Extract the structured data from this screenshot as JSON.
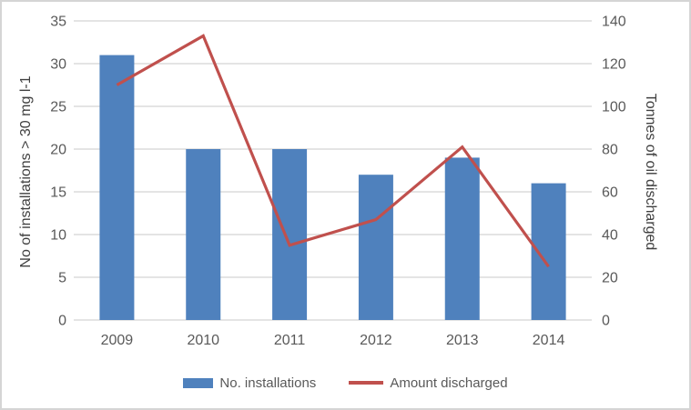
{
  "chart_data": {
    "type": "combo-bar-line",
    "categories": [
      "2009",
      "2010",
      "2011",
      "2012",
      "2013",
      "2014"
    ],
    "series": [
      {
        "name": "No. installations",
        "type": "bar",
        "axis": "left",
        "color": "#4f81bd",
        "values": [
          31,
          20,
          20,
          17,
          19,
          16
        ]
      },
      {
        "name": "Amount discharged",
        "type": "line",
        "axis": "right",
        "color": "#c0504d",
        "values": [
          110,
          133,
          35,
          47,
          81,
          25
        ]
      }
    ],
    "left_axis": {
      "label": "No of installations > 30 mg l-1",
      "min": 0,
      "max": 35,
      "step": 5,
      "ticks": [
        "0",
        "5",
        "10",
        "15",
        "20",
        "25",
        "30",
        "35"
      ]
    },
    "right_axis": {
      "label": "Tonnes of oil discharged",
      "min": 0,
      "max": 140,
      "step": 20,
      "ticks": [
        "0",
        "20",
        "40",
        "60",
        "80",
        "100",
        "120",
        "140"
      ]
    },
    "grid": true,
    "legend_position": "bottom",
    "palette": {
      "gridline": "#dcdcdc",
      "tick_text": "#595959",
      "title_text": "#404040",
      "frame_border": "#d5d5d5",
      "background": "#ffffff"
    }
  }
}
